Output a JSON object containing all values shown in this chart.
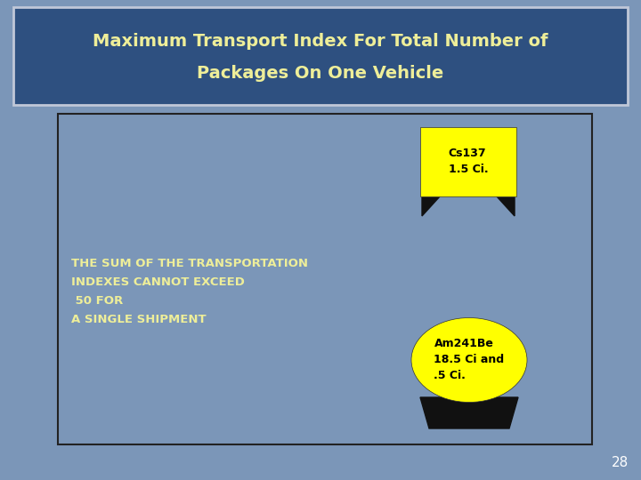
{
  "title_line1": "Maximum Transport Index For Total Number of",
  "title_line2": "Packages On One Vehicle",
  "title_color": "#eeee99",
  "title_bg_color": "#2e5080",
  "title_border_color": "#c0c8d8",
  "bg_color": "#7b96b8",
  "inner_bg_color": "#7b96b8",
  "inner_border_color": "#222222",
  "box1_text": "Cs137\n1.5 Ci.",
  "box2_text": "Am241Be\n18.5 Ci and\n.5 Ci.",
  "box_fill_color": "#ffff00",
  "box_text_color": "#000000",
  "body_text": "THE SUM OF THE TRANSPORTATION\nINDEXES CANNOT EXCEED\n 50 FOR\nA SINGLE SHIPMENT",
  "body_text_color": "#eeee99",
  "page_number": "28",
  "page_number_color": "#ffffff"
}
